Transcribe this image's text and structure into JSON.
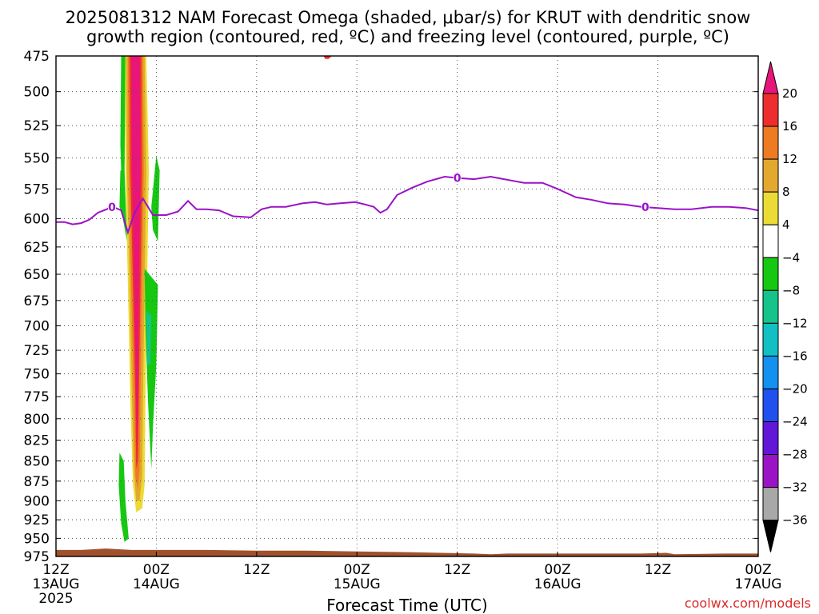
{
  "chart_data": {
    "type": "heatmap",
    "title_lines": [
      "2025081312 NAM Forecast Omega (shaded, μbar/s) for KRUT with dendritic snow",
      "growth region (contoured, red, ºC) and freezing level (contoured, purple, ºC)"
    ],
    "xlabel": "Forecast Time (UTC)",
    "credit": "coolwx.com/models",
    "forecast_hour_range": [
      0,
      84
    ],
    "pressure_range_hpa": [
      475,
      975
    ],
    "pressure_ticks": [
      475,
      500,
      525,
      550,
      575,
      600,
      625,
      650,
      675,
      700,
      725,
      750,
      775,
      800,
      825,
      850,
      875,
      900,
      925,
      950,
      975
    ],
    "x_ticks": [
      {
        "hour": 0,
        "lines": [
          "12Z",
          "13AUG",
          "2025"
        ]
      },
      {
        "hour": 12,
        "lines": [
          "00Z",
          "14AUG"
        ]
      },
      {
        "hour": 24,
        "lines": [
          "12Z"
        ]
      },
      {
        "hour": 36,
        "lines": [
          "00Z",
          "15AUG"
        ]
      },
      {
        "hour": 48,
        "lines": [
          "12Z"
        ]
      },
      {
        "hour": 60,
        "lines": [
          "00Z",
          "16AUG"
        ]
      },
      {
        "hour": 72,
        "lines": [
          "12Z"
        ]
      },
      {
        "hour": 84,
        "lines": [
          "00Z",
          "17AUG"
        ]
      }
    ],
    "grid": true,
    "colorbar": {
      "position": "right",
      "labels": [
        "20",
        "16",
        "12",
        "8",
        "4",
        "−4",
        "−8",
        "−12",
        "−16",
        "−20",
        "−24",
        "−28",
        "−32",
        "−36"
      ],
      "boundaries": [
        20,
        16,
        12,
        8,
        4,
        -4,
        -8,
        -12,
        -16,
        -20,
        -24,
        -28,
        -32,
        -36
      ],
      "colors": [
        "#ee2e2e",
        "#ee7a22",
        "#e3a82e",
        "#ecdb34",
        "#ffffff",
        "#16c812",
        "#14c48a",
        "#12c0c4",
        "#1490ee",
        "#2050f0",
        "#6216d8",
        "#9a14c6",
        "#a8a8a8"
      ],
      "top_arrow_color": "#e8157a",
      "bottom_arrow_color": "#000000"
    },
    "freezing_level": {
      "label": "0",
      "color": "#9a12c8",
      "label_hours": [
        6.7,
        48,
        70.5
      ],
      "points": [
        [
          0,
          603
        ],
        [
          1,
          603
        ],
        [
          2,
          605
        ],
        [
          3,
          604
        ],
        [
          4,
          601
        ],
        [
          5,
          595
        ],
        [
          6.8,
          590
        ],
        [
          7.8,
          593
        ],
        [
          8.6,
          612
        ],
        [
          9.4,
          595
        ],
        [
          10.4,
          583
        ],
        [
          11,
          590
        ],
        [
          11.6,
          597
        ],
        [
          13.2,
          597
        ],
        [
          14.6,
          594
        ],
        [
          15.8,
          585
        ],
        [
          16.8,
          592
        ],
        [
          18,
          592
        ],
        [
          19.5,
          593
        ],
        [
          21.2,
          598
        ],
        [
          23.3,
          599
        ],
        [
          24.6,
          592
        ],
        [
          25.8,
          590
        ],
        [
          27.5,
          590
        ],
        [
          29.5,
          587
        ],
        [
          31,
          586
        ],
        [
          32.4,
          588
        ],
        [
          34,
          587
        ],
        [
          35.8,
          586
        ],
        [
          37,
          588
        ],
        [
          38,
          590
        ],
        [
          38.8,
          595
        ],
        [
          39.6,
          592
        ],
        [
          40.8,
          580
        ],
        [
          42.6,
          574
        ],
        [
          44.4,
          569
        ],
        [
          46.5,
          565
        ],
        [
          48,
          566
        ],
        [
          50,
          567
        ],
        [
          52,
          565
        ],
        [
          53.6,
          567
        ],
        [
          56,
          570
        ],
        [
          58.2,
          570
        ],
        [
          60,
          575
        ],
        [
          62.2,
          582
        ],
        [
          64,
          584
        ],
        [
          66,
          587
        ],
        [
          68,
          588
        ],
        [
          70,
          590
        ],
        [
          72,
          591
        ],
        [
          74,
          592
        ],
        [
          76,
          592
        ],
        [
          78.5,
          590
        ],
        [
          80.5,
          590
        ],
        [
          82.5,
          591
        ],
        [
          84,
          593
        ]
      ]
    },
    "omega_shading": [
      {
        "value_range": [
          4,
          8
        ],
        "color": "#ecdb34",
        "polygon": [
          [
            8.2,
            470
          ],
          [
            10.8,
            470
          ],
          [
            11.1,
            560
          ],
          [
            10.9,
            660
          ],
          [
            10.7,
            780
          ],
          [
            10.6,
            880
          ],
          [
            10.3,
            910
          ],
          [
            9.6,
            915
          ],
          [
            9.2,
            880
          ],
          [
            8.9,
            780
          ],
          [
            8.6,
            660
          ],
          [
            8.3,
            560
          ]
        ]
      },
      {
        "value_range": [
          8,
          12
        ],
        "color": "#e3a82e",
        "polygon": [
          [
            8.4,
            470
          ],
          [
            10.6,
            470
          ],
          [
            10.8,
            560
          ],
          [
            10.6,
            660
          ],
          [
            10.4,
            780
          ],
          [
            10.3,
            870
          ],
          [
            10.0,
            900
          ],
          [
            9.6,
            900
          ],
          [
            9.3,
            860
          ],
          [
            9.1,
            780
          ],
          [
            8.8,
            660
          ],
          [
            8.5,
            560
          ]
        ]
      },
      {
        "value_range": [
          12,
          16
        ],
        "color": "#ee7a22",
        "polygon": [
          [
            8.6,
            470
          ],
          [
            10.4,
            470
          ],
          [
            10.5,
            560
          ],
          [
            10.3,
            660
          ],
          [
            10.1,
            780
          ],
          [
            10.0,
            860
          ],
          [
            9.8,
            885
          ],
          [
            9.5,
            870
          ],
          [
            9.3,
            780
          ],
          [
            9.0,
            660
          ],
          [
            8.7,
            560
          ]
        ]
      },
      {
        "value_range": [
          16,
          20
        ],
        "color": "#ee2e2e",
        "polygon": [
          [
            8.8,
            470
          ],
          [
            10.2,
            470
          ],
          [
            10.3,
            560
          ],
          [
            10.1,
            660
          ],
          [
            9.9,
            780
          ],
          [
            9.8,
            850
          ],
          [
            9.6,
            860
          ],
          [
            9.5,
            780
          ],
          [
            9.2,
            660
          ],
          [
            8.9,
            560
          ]
        ]
      },
      {
        "value_range": [
          20,
          40
        ],
        "color": "#e8157a",
        "polygon": [
          [
            9.0,
            470
          ],
          [
            10.0,
            470
          ],
          [
            10.1,
            560
          ],
          [
            9.9,
            660
          ],
          [
            9.8,
            780
          ],
          [
            9.7,
            840
          ],
          [
            9.6,
            780
          ],
          [
            9.4,
            660
          ],
          [
            9.1,
            560
          ]
        ]
      },
      {
        "value_range": [
          -8,
          -4
        ],
        "color": "#16c812",
        "polygon": [
          [
            7.8,
            470
          ],
          [
            8.3,
            470
          ],
          [
            8.2,
            560
          ],
          [
            8.5,
            620
          ],
          [
            8.0,
            600
          ],
          [
            7.7,
            540
          ]
        ]
      },
      {
        "value_range": [
          -8,
          -4
        ],
        "color": "#16c812",
        "polygon": [
          [
            12.0,
            548
          ],
          [
            12.4,
            560
          ],
          [
            12.2,
            620
          ],
          [
            11.6,
            610
          ],
          [
            11.4,
            590
          ]
        ]
      },
      {
        "value_range": [
          -8,
          -4
        ],
        "color": "#16c812",
        "polygon": [
          [
            10.6,
            645
          ],
          [
            12.2,
            660
          ],
          [
            12.0,
            740
          ],
          [
            11.6,
            810
          ],
          [
            11.4,
            860
          ],
          [
            11.0,
            780
          ],
          [
            10.7,
            700
          ]
        ]
      },
      {
        "value_range": [
          -12,
          -8
        ],
        "color": "#14c48a",
        "polygon": [
          [
            10.8,
            685
          ],
          [
            11.4,
            690
          ],
          [
            11.3,
            740
          ],
          [
            10.9,
            740
          ]
        ]
      },
      {
        "value_range": [
          -8,
          -4
        ],
        "color": "#16c812",
        "polygon": [
          [
            7.6,
            840
          ],
          [
            8.1,
            850
          ],
          [
            8.3,
            900
          ],
          [
            8.7,
            950
          ],
          [
            8.2,
            955
          ],
          [
            7.8,
            930
          ],
          [
            7.5,
            880
          ]
        ]
      },
      {
        "value_range": [
          -8,
          -4
        ],
        "color": "#16c812",
        "polygon": [
          [
            7.7,
            560
          ],
          [
            8.1,
            560
          ],
          [
            8.0,
            600
          ],
          [
            7.6,
            590
          ]
        ]
      },
      {
        "value_range": [
          16,
          20
        ],
        "color": "#ee2e2e",
        "polygon": [
          [
            32.0,
            470
          ],
          [
            33.0,
            470
          ],
          [
            32.6,
            477
          ],
          [
            32.2,
            477
          ]
        ]
      }
    ],
    "terrain_surface_hpa": [
      [
        0,
        966
      ],
      [
        3,
        966
      ],
      [
        6,
        964
      ],
      [
        9,
        966
      ],
      [
        12,
        966
      ],
      [
        18,
        966
      ],
      [
        24,
        967
      ],
      [
        30,
        967
      ],
      [
        36,
        968
      ],
      [
        42,
        969
      ],
      [
        46,
        970
      ],
      [
        50,
        971
      ],
      [
        52,
        972
      ],
      [
        54,
        971
      ],
      [
        60,
        971
      ],
      [
        70,
        971
      ],
      [
        73,
        970
      ],
      [
        74,
        972
      ],
      [
        80,
        971
      ],
      [
        84,
        971
      ]
    ],
    "terrain_color": "#a0522d"
  }
}
